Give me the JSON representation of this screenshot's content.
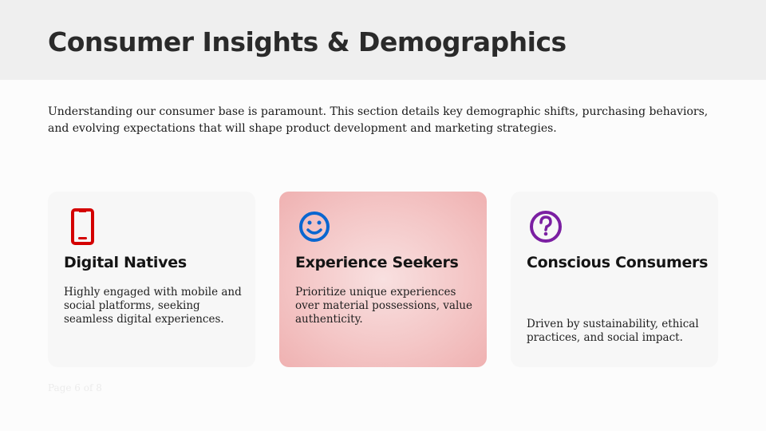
{
  "header": {
    "title": "Consumer Insights & Demographics"
  },
  "intro": "Understanding our consumer base is paramount. This section details key demographic shifts, purchasing behaviors, and evolving expectations that will shape product development and marketing strategies.",
  "cards": [
    {
      "icon": "smartphone-icon",
      "icon_color": "#d40000",
      "title": "Digital Natives",
      "text": "Highly engaged with mobile and social platforms, seeking seamless digital experiences."
    },
    {
      "icon": "smiley-icon",
      "icon_color": "#0a66d0",
      "title": "Experience Seekers",
      "text": "Prioritize unique experiences over material possessions, value authenticity.",
      "highlighted": true
    },
    {
      "icon": "question-circle-icon",
      "icon_color": "#7b1fa2",
      "title": "Conscious Consumers",
      "text": "Driven by sustainability, ethical practices, and social impact."
    }
  ],
  "footer": {
    "page": "Page 6 of 8"
  }
}
